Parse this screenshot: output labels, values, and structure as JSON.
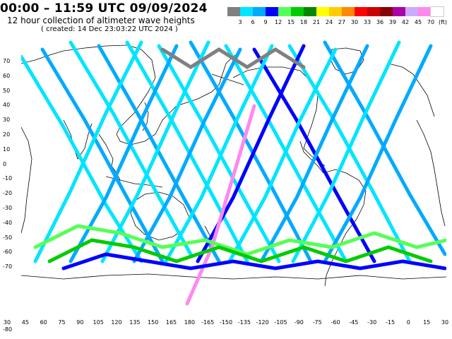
{
  "header": {
    "title": "00:00 – 11:59 UTC 09/09/2024",
    "subtitle": "12 hour collection of altimeter wave heights",
    "created": "( created: 14 Dec 23:03:22 UTC 2024 )"
  },
  "legend": {
    "unit": "(ft)",
    "labels": [
      "3",
      "6",
      "9",
      "12",
      "15",
      "18",
      "21",
      "24",
      "27",
      "30",
      "33",
      "36",
      "39",
      "42",
      "45",
      "70"
    ],
    "colors": [
      "#808080",
      "#00e5ff",
      "#00aaff",
      "#0000ff",
      "#55ff55",
      "#00cc00",
      "#008800",
      "#ffff00",
      "#ffcc00",
      "#ff8800",
      "#ff0000",
      "#cc0000",
      "#880000",
      "#aa00aa",
      "#ccaaff",
      "#ff88ee",
      "#ffffff"
    ]
  },
  "axes": {
    "lat_labels": [
      "70",
      "60",
      "50",
      "40",
      "30",
      "20",
      "10",
      "0",
      "-10",
      "-20",
      "-30",
      "-40",
      "-50",
      "-60",
      "-70"
    ],
    "lon_labels": [
      "30",
      "45",
      "60",
      "75",
      "90",
      "105",
      "120",
      "135",
      "150",
      "165",
      "180",
      "-165",
      "-150",
      "-135",
      "-120",
      "-105",
      "-90",
      "-75",
      "-60",
      "-45",
      "-30",
      "-15",
      "0",
      "15",
      "30"
    ],
    "corner_label": "-80"
  },
  "map_colors": {
    "coast": "#000000",
    "background": "#ffffff"
  }
}
